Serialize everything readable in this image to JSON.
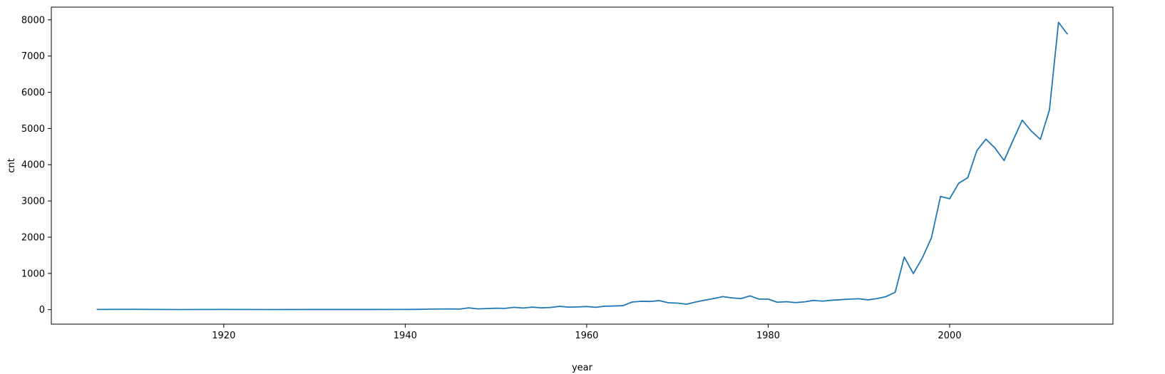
{
  "chart_data": {
    "type": "line",
    "title": "",
    "xlabel": "year",
    "ylabel": "cnt",
    "xlim": [
      1901,
      2018
    ],
    "ylim": [
      -400,
      8350
    ],
    "x_ticks": [
      1920,
      1940,
      1960,
      1980,
      2000
    ],
    "y_ticks": [
      0,
      1000,
      2000,
      3000,
      4000,
      5000,
      6000,
      7000,
      8000
    ],
    "grid": false,
    "series": [
      {
        "color": "#1f77b4",
        "x": [
          1906,
          1910,
          1915,
          1920,
          1925,
          1930,
          1935,
          1940,
          1941,
          1942,
          1943,
          1944,
          1945,
          1946,
          1947,
          1948,
          1949,
          1950,
          1951,
          1952,
          1953,
          1954,
          1955,
          1956,
          1957,
          1958,
          1959,
          1960,
          1961,
          1962,
          1963,
          1964,
          1965,
          1966,
          1967,
          1968,
          1969,
          1970,
          1971,
          1972,
          1973,
          1974,
          1975,
          1976,
          1977,
          1978,
          1979,
          1980,
          1981,
          1982,
          1983,
          1984,
          1985,
          1986,
          1987,
          1988,
          1989,
          1990,
          1991,
          1992,
          1993,
          1994,
          1995,
          1996,
          1997,
          1998,
          1999,
          2000,
          2001,
          2002,
          2003,
          2004,
          2005,
          2006,
          2007,
          2008,
          2009,
          2010,
          2011,
          2012,
          2013
        ],
        "y": [
          5,
          8,
          3,
          5,
          3,
          4,
          4,
          6,
          7,
          10,
          15,
          18,
          20,
          15,
          50,
          20,
          30,
          40,
          35,
          65,
          45,
          70,
          50,
          60,
          90,
          70,
          75,
          85,
          65,
          95,
          100,
          110,
          210,
          230,
          225,
          250,
          190,
          180,
          150,
          210,
          260,
          305,
          360,
          325,
          305,
          380,
          290,
          290,
          205,
          220,
          195,
          215,
          255,
          235,
          260,
          275,
          290,
          300,
          270,
          305,
          360,
          480,
          1450,
          995,
          1430,
          1990,
          3125,
          3060,
          3490,
          3640,
          4390,
          4705,
          4460,
          4115,
          4680,
          5230,
          4930,
          4700,
          5510,
          7930,
          7600
        ]
      }
    ]
  }
}
